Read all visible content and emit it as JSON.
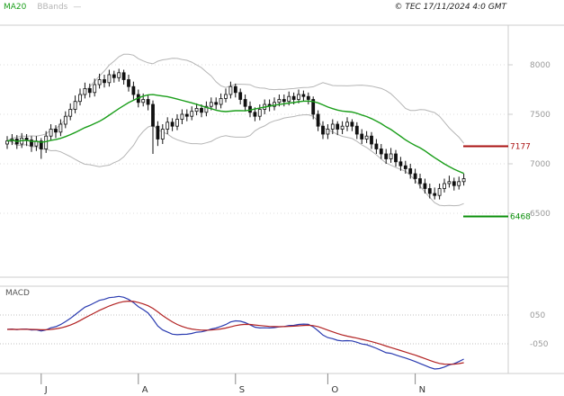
{
  "header": {
    "legend_ma": "MA20",
    "legend_bb": "BBands",
    "legend_dash": "—",
    "copyright": "© TEC 17/11/2024 4:0 GMT"
  },
  "colors": {
    "ma20": "#1a9e1a",
    "bbands": "#b5b5b5",
    "candle": "#111111",
    "resistance": "#aa1111",
    "support": "#0a8f0a",
    "macd_line": "#2a3bb0",
    "macd_signal": "#b22222",
    "axis_text": "#999999",
    "month_text": "#333333",
    "border": "#cccccc",
    "grid_dotted": "#dddddd"
  },
  "chart_data": {
    "type": "candlestick",
    "description": "Daily OHLC price chart with MA20 and Bollinger Bands overlays, horizontal resistance/support levels, and a MACD sub-panel",
    "price_panel": {
      "y_ticks": [
        8000,
        7500,
        7000,
        6500
      ],
      "levels": [
        {
          "name": "resistance",
          "label": "7177",
          "value": 7177,
          "color_key": "resistance"
        },
        {
          "name": "support",
          "label": "6468",
          "value": 6468,
          "color_key": "support"
        }
      ],
      "overlays": [
        "MA20",
        "BBands(20,2)"
      ],
      "bars": [
        [
          7200,
          7280,
          7150,
          7230
        ],
        [
          7230,
          7300,
          7190,
          7250
        ],
        [
          7250,
          7290,
          7150,
          7200
        ],
        [
          7200,
          7310,
          7160,
          7260
        ],
        [
          7260,
          7300,
          7180,
          7240
        ],
        [
          7240,
          7280,
          7120,
          7180
        ],
        [
          7180,
          7280,
          7130,
          7230
        ],
        [
          7230,
          7260,
          7050,
          7150
        ],
        [
          7150,
          7330,
          7110,
          7280
        ],
        [
          7280,
          7400,
          7240,
          7350
        ],
        [
          7350,
          7390,
          7260,
          7320
        ],
        [
          7320,
          7450,
          7280,
          7400
        ],
        [
          7400,
          7530,
          7360,
          7480
        ],
        [
          7480,
          7610,
          7440,
          7550
        ],
        [
          7550,
          7690,
          7510,
          7630
        ],
        [
          7630,
          7760,
          7590,
          7700
        ],
        [
          7700,
          7820,
          7660,
          7760
        ],
        [
          7760,
          7810,
          7670,
          7720
        ],
        [
          7720,
          7860,
          7680,
          7800
        ],
        [
          7800,
          7910,
          7760,
          7850
        ],
        [
          7850,
          7900,
          7770,
          7820
        ],
        [
          7820,
          7950,
          7780,
          7900
        ],
        [
          7900,
          7940,
          7820,
          7870
        ],
        [
          7870,
          7960,
          7830,
          7920
        ],
        [
          7920,
          7950,
          7800,
          7850
        ],
        [
          7850,
          7900,
          7730,
          7780
        ],
        [
          7780,
          7830,
          7650,
          7700
        ],
        [
          7700,
          7750,
          7570,
          7620
        ],
        [
          7620,
          7710,
          7580,
          7650
        ],
        [
          7650,
          7700,
          7540,
          7600
        ],
        [
          7600,
          7640,
          7100,
          7380
        ],
        [
          7380,
          7430,
          7180,
          7250
        ],
        [
          7250,
          7400,
          7200,
          7350
        ],
        [
          7350,
          7470,
          7300,
          7420
        ],
        [
          7420,
          7460,
          7330,
          7380
        ],
        [
          7380,
          7500,
          7340,
          7450
        ],
        [
          7450,
          7550,
          7400,
          7500
        ],
        [
          7500,
          7550,
          7430,
          7480
        ],
        [
          7480,
          7580,
          7440,
          7530
        ],
        [
          7530,
          7610,
          7490,
          7560
        ],
        [
          7560,
          7600,
          7470,
          7520
        ],
        [
          7520,
          7630,
          7480,
          7580
        ],
        [
          7580,
          7670,
          7540,
          7620
        ],
        [
          7620,
          7670,
          7550,
          7600
        ],
        [
          7600,
          7710,
          7560,
          7660
        ],
        [
          7660,
          7760,
          7620,
          7700
        ],
        [
          7700,
          7830,
          7660,
          7780
        ],
        [
          7780,
          7810,
          7670,
          7720
        ],
        [
          7720,
          7760,
          7600,
          7650
        ],
        [
          7650,
          7700,
          7530,
          7580
        ],
        [
          7580,
          7630,
          7470,
          7520
        ],
        [
          7520,
          7570,
          7430,
          7480
        ],
        [
          7480,
          7600,
          7440,
          7550
        ],
        [
          7550,
          7650,
          7500,
          7600
        ],
        [
          7600,
          7650,
          7530,
          7580
        ],
        [
          7580,
          7670,
          7540,
          7620
        ],
        [
          7620,
          7700,
          7580,
          7650
        ],
        [
          7650,
          7700,
          7580,
          7630
        ],
        [
          7630,
          7730,
          7590,
          7680
        ],
        [
          7680,
          7720,
          7600,
          7650
        ],
        [
          7650,
          7750,
          7610,
          7700
        ],
        [
          7700,
          7740,
          7630,
          7680
        ],
        [
          7680,
          7720,
          7600,
          7650
        ],
        [
          7650,
          7680,
          7450,
          7500
        ],
        [
          7500,
          7540,
          7330,
          7380
        ],
        [
          7380,
          7430,
          7250,
          7300
        ],
        [
          7300,
          7400,
          7250,
          7350
        ],
        [
          7350,
          7450,
          7300,
          7400
        ],
        [
          7400,
          7430,
          7290,
          7350
        ],
        [
          7350,
          7430,
          7300,
          7380
        ],
        [
          7380,
          7470,
          7330,
          7420
        ],
        [
          7420,
          7450,
          7330,
          7380
        ],
        [
          7380,
          7420,
          7250,
          7300
        ],
        [
          7300,
          7350,
          7200,
          7250
        ],
        [
          7250,
          7330,
          7210,
          7280
        ],
        [
          7280,
          7320,
          7150,
          7200
        ],
        [
          7200,
          7250,
          7100,
          7150
        ],
        [
          7150,
          7200,
          7050,
          7100
        ],
        [
          7100,
          7150,
          7000,
          7050
        ],
        [
          7050,
          7160,
          7010,
          7100
        ],
        [
          7100,
          7140,
          6970,
          7020
        ],
        [
          7020,
          7070,
          6930,
          6980
        ],
        [
          6980,
          7030,
          6900,
          6950
        ],
        [
          6950,
          7000,
          6850,
          6900
        ],
        [
          6900,
          6950,
          6800,
          6850
        ],
        [
          6850,
          6900,
          6750,
          6800
        ],
        [
          6800,
          6850,
          6700,
          6750
        ],
        [
          6750,
          6800,
          6650,
          6700
        ],
        [
          6700,
          6760,
          6640,
          6680
        ],
        [
          6680,
          6800,
          6640,
          6750
        ],
        [
          6750,
          6850,
          6710,
          6800
        ],
        [
          6800,
          6880,
          6760,
          6820
        ],
        [
          6820,
          6860,
          6730,
          6780
        ],
        [
          6780,
          6870,
          6740,
          6820
        ],
        [
          6820,
          6900,
          6780,
          6850
        ]
      ]
    },
    "macd_panel": {
      "label": "MACD",
      "ema_fast": 12,
      "ema_slow": 26,
      "signal_period": 9,
      "y_tick_labels": [
        "050",
        "-050"
      ],
      "y_tick_values": [
        0.5,
        -0.5
      ]
    },
    "x_ticks": [
      {
        "label": "J",
        "index": 7
      },
      {
        "label": "A",
        "index": 27
      },
      {
        "label": "S",
        "index": 47
      },
      {
        "label": "O",
        "index": 66
      },
      {
        "label": "N",
        "index": 84
      }
    ]
  }
}
